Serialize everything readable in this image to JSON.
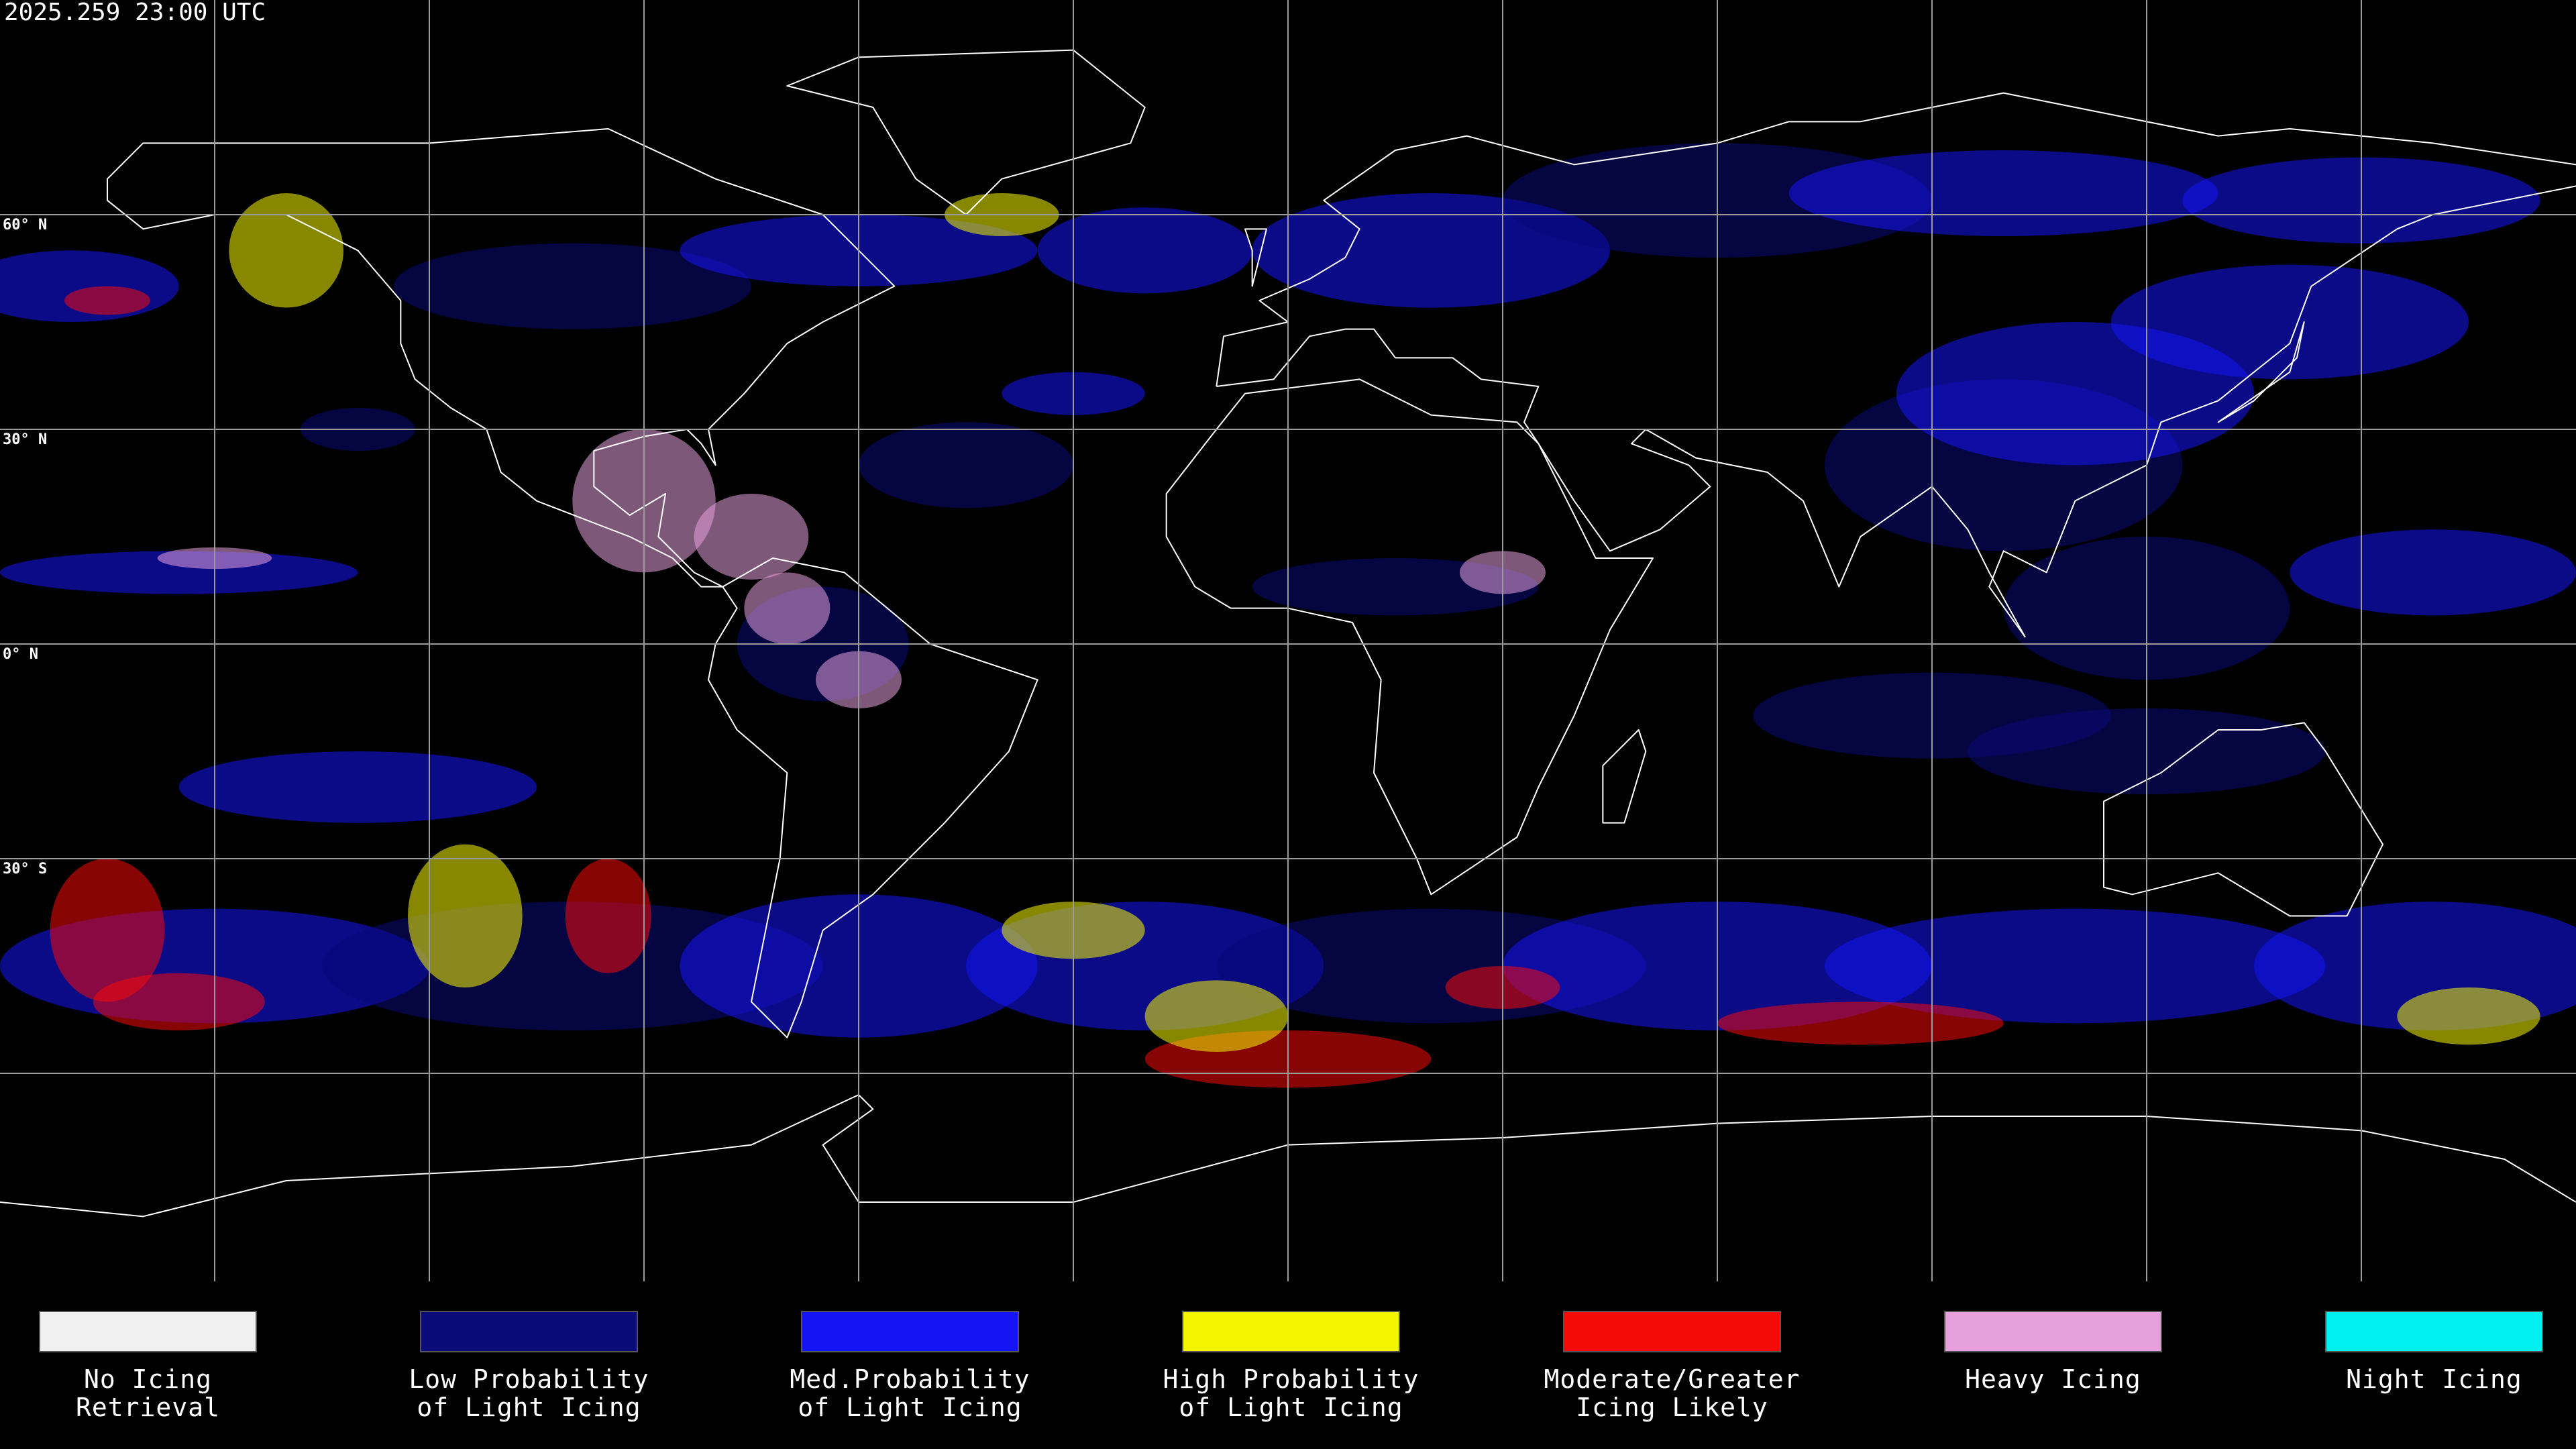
{
  "header": {
    "timestamp": "2025.259 23:00 UTC"
  },
  "map": {
    "latitude_labels": [
      "60° N",
      "30° N",
      "0° N",
      "30° S"
    ]
  },
  "legend": {
    "items": [
      {
        "label": [
          "No Icing",
          "Retrieval"
        ],
        "color": "#f0f0f0"
      },
      {
        "label": [
          "Low Probability",
          "of Light Icing"
        ],
        "color": "#0a0a78"
      },
      {
        "label": [
          "Med.Probability",
          "of Light Icing"
        ],
        "color": "#1414f5"
      },
      {
        "label": [
          "High Probability",
          "of Light Icing"
        ],
        "color": "#f5f500"
      },
      {
        "label": [
          "Moderate/Greater",
          "Icing Likely"
        ],
        "color": "#f50a0a"
      },
      {
        "label": [
          "Heavy Icing"
        ],
        "color": "#e6a0dc"
      },
      {
        "label": [
          "Night Icing"
        ],
        "color": "#00f0f0"
      }
    ]
  }
}
